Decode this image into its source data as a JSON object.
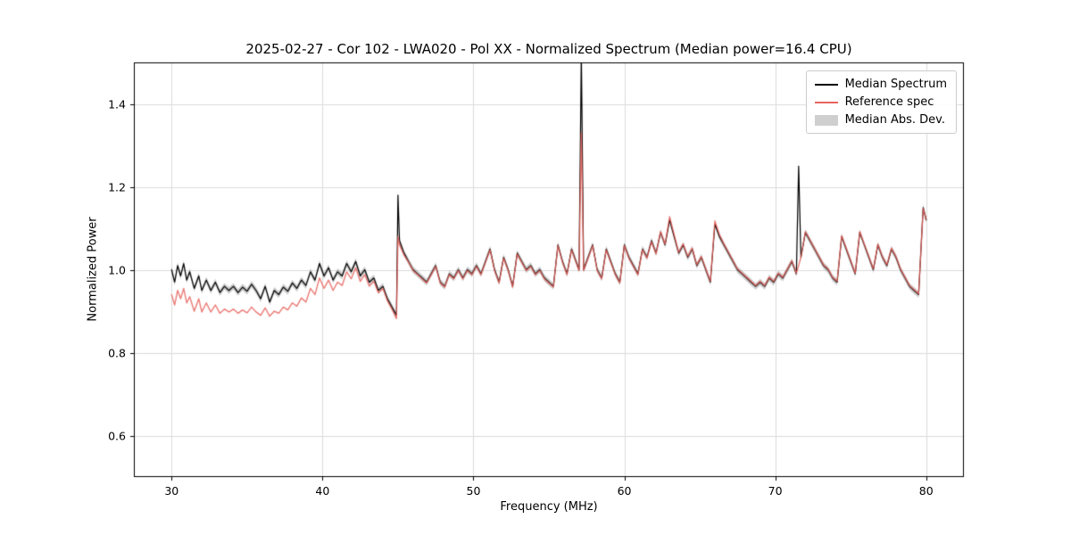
{
  "chart_data": {
    "type": "line",
    "title": "2025-02-27 - Cor 102 - LWA020 - Pol XX - Normalized Spectrum (Median power=16.4 CPU)",
    "xlabel": "Frequency (MHz)",
    "ylabel": "Normalized Power",
    "xlim": [
      27.5,
      82.5
    ],
    "ylim": [
      0.5,
      1.5
    ],
    "xticks": [
      30,
      40,
      50,
      60,
      70,
      80
    ],
    "yticks": [
      0.6,
      0.8,
      1.0,
      1.2,
      1.4
    ],
    "grid": true,
    "legend_position": "upper right",
    "x": [
      30.0,
      30.2,
      30.4,
      30.6,
      30.8,
      31.0,
      31.2,
      31.5,
      31.8,
      32.0,
      32.3,
      32.6,
      32.9,
      33.2,
      33.5,
      33.8,
      34.1,
      34.4,
      34.7,
      35.0,
      35.3,
      35.6,
      35.9,
      36.2,
      36.5,
      36.8,
      37.1,
      37.4,
      37.7,
      38.0,
      38.3,
      38.6,
      38.9,
      39.2,
      39.5,
      39.8,
      40.1,
      40.4,
      40.7,
      41.0,
      41.3,
      41.6,
      41.9,
      42.2,
      42.5,
      42.8,
      43.1,
      43.4,
      43.7,
      44.0,
      44.3,
      44.6,
      44.9,
      45.0,
      45.1,
      45.4,
      45.7,
      46.0,
      46.3,
      46.6,
      46.9,
      47.2,
      47.5,
      47.8,
      48.1,
      48.4,
      48.7,
      49.0,
      49.3,
      49.6,
      49.9,
      50.2,
      50.5,
      50.8,
      51.1,
      51.4,
      51.7,
      52.0,
      52.3,
      52.6,
      52.9,
      53.2,
      53.5,
      53.8,
      54.1,
      54.4,
      54.7,
      55.0,
      55.3,
      55.6,
      55.9,
      56.2,
      56.5,
      56.8,
      57.0,
      57.15,
      57.3,
      57.6,
      57.9,
      58.2,
      58.5,
      58.8,
      59.1,
      59.4,
      59.7,
      60.0,
      60.3,
      60.6,
      60.9,
      61.2,
      61.5,
      61.8,
      62.1,
      62.4,
      62.7,
      63.0,
      63.3,
      63.6,
      63.9,
      64.2,
      64.5,
      64.8,
      65.1,
      65.4,
      65.7,
      66.0,
      66.3,
      66.6,
      66.9,
      67.2,
      67.5,
      67.8,
      68.1,
      68.4,
      68.7,
      69.0,
      69.3,
      69.6,
      69.9,
      70.2,
      70.5,
      70.8,
      71.1,
      71.4,
      71.55,
      71.7,
      72.0,
      72.3,
      72.6,
      72.9,
      73.2,
      73.5,
      73.8,
      74.1,
      74.4,
      74.7,
      75.0,
      75.3,
      75.6,
      75.9,
      76.2,
      76.5,
      76.8,
      77.1,
      77.4,
      77.7,
      78.0,
      78.3,
      78.6,
      78.9,
      79.2,
      79.5,
      79.8,
      80.0
    ],
    "series": [
      {
        "name": "Median Spectrum",
        "color": "#000000",
        "values": [
          1.0,
          0.97,
          1.01,
          0.985,
          1.015,
          0.975,
          0.995,
          0.955,
          0.985,
          0.95,
          0.975,
          0.95,
          0.97,
          0.945,
          0.96,
          0.95,
          0.96,
          0.945,
          0.958,
          0.948,
          0.965,
          0.95,
          0.93,
          0.96,
          0.922,
          0.95,
          0.94,
          0.958,
          0.948,
          0.968,
          0.955,
          0.975,
          0.962,
          0.995,
          0.975,
          1.015,
          0.985,
          1.005,
          0.975,
          0.995,
          0.985,
          1.015,
          0.995,
          1.02,
          0.985,
          1.0,
          0.97,
          0.98,
          0.95,
          0.96,
          0.93,
          0.91,
          0.89,
          1.18,
          1.07,
          1.04,
          1.02,
          1.0,
          0.99,
          0.98,
          0.97,
          0.99,
          1.01,
          0.97,
          0.96,
          0.99,
          0.98,
          1.0,
          0.98,
          1.0,
          0.99,
          1.01,
          0.99,
          1.02,
          1.05,
          1.0,
          0.97,
          1.03,
          1.0,
          0.96,
          1.04,
          1.02,
          1.0,
          1.01,
          0.99,
          1.0,
          0.98,
          0.97,
          0.96,
          1.06,
          1.02,
          0.99,
          1.05,
          1.02,
          1.0,
          1.52,
          1.0,
          1.03,
          1.06,
          1.0,
          0.98,
          1.05,
          1.02,
          0.99,
          0.97,
          1.06,
          1.03,
          1.01,
          0.99,
          1.05,
          1.03,
          1.07,
          1.04,
          1.09,
          1.06,
          1.12,
          1.08,
          1.04,
          1.06,
          1.03,
          1.05,
          1.01,
          1.03,
          1.0,
          0.97,
          1.11,
          1.08,
          1.06,
          1.04,
          1.02,
          1.0,
          0.99,
          0.98,
          0.97,
          0.96,
          0.97,
          0.96,
          0.98,
          0.97,
          0.99,
          0.98,
          1.0,
          1.02,
          0.99,
          1.25,
          1.03,
          1.09,
          1.07,
          1.05,
          1.03,
          1.01,
          1.0,
          0.98,
          0.97,
          1.08,
          1.05,
          1.02,
          0.99,
          1.09,
          1.06,
          1.03,
          1.0,
          1.06,
          1.03,
          1.01,
          1.05,
          1.03,
          1.0,
          0.98,
          0.96,
          0.95,
          0.94,
          1.15,
          1.12
        ]
      },
      {
        "name": "Reference spec",
        "color": "#e8645e",
        "values": [
          0.94,
          0.915,
          0.95,
          0.93,
          0.955,
          0.92,
          0.935,
          0.9,
          0.93,
          0.898,
          0.92,
          0.898,
          0.915,
          0.895,
          0.905,
          0.898,
          0.905,
          0.895,
          0.903,
          0.896,
          0.91,
          0.898,
          0.89,
          0.908,
          0.888,
          0.9,
          0.895,
          0.91,
          0.903,
          0.92,
          0.912,
          0.932,
          0.922,
          0.955,
          0.94,
          0.98,
          0.955,
          0.975,
          0.95,
          0.97,
          0.962,
          0.995,
          0.978,
          1.005,
          0.972,
          0.988,
          0.96,
          0.972,
          0.944,
          0.955,
          0.925,
          0.905,
          0.882,
          1.08,
          1.06,
          1.035,
          1.018,
          0.998,
          0.988,
          0.978,
          0.968,
          0.988,
          1.008,
          0.968,
          0.958,
          0.988,
          0.978,
          0.998,
          0.978,
          0.998,
          0.988,
          1.008,
          0.988,
          1.018,
          1.048,
          0.998,
          0.968,
          1.028,
          0.998,
          0.958,
          1.038,
          1.018,
          0.998,
          1.008,
          0.988,
          0.998,
          0.978,
          0.968,
          0.958,
          1.058,
          1.018,
          0.988,
          1.048,
          1.018,
          0.998,
          1.33,
          0.998,
          1.028,
          1.058,
          0.998,
          0.978,
          1.048,
          1.018,
          0.988,
          0.968,
          1.058,
          1.028,
          1.008,
          0.988,
          1.048,
          1.028,
          1.068,
          1.038,
          1.092,
          1.062,
          1.128,
          1.085,
          1.042,
          1.062,
          1.032,
          1.052,
          1.012,
          1.032,
          1.002,
          0.972,
          1.118,
          1.085,
          1.062,
          1.042,
          1.022,
          1.002,
          0.992,
          0.982,
          0.972,
          0.962,
          0.972,
          0.962,
          0.982,
          0.972,
          0.992,
          0.982,
          1.002,
          1.022,
          0.992,
          1.01,
          1.03,
          1.092,
          1.072,
          1.052,
          1.032,
          1.012,
          1.002,
          0.982,
          0.972,
          1.082,
          1.052,
          1.022,
          0.992,
          1.092,
          1.062,
          1.032,
          1.002,
          1.062,
          1.032,
          1.012,
          1.052,
          1.032,
          1.002,
          0.982,
          0.962,
          0.952,
          0.942,
          1.148,
          1.122
        ]
      }
    ],
    "band": {
      "label": "Median Abs. Dev.",
      "color": "#cfcfcf",
      "around_series": "Median Spectrum",
      "halfwidth": 0.008
    }
  }
}
